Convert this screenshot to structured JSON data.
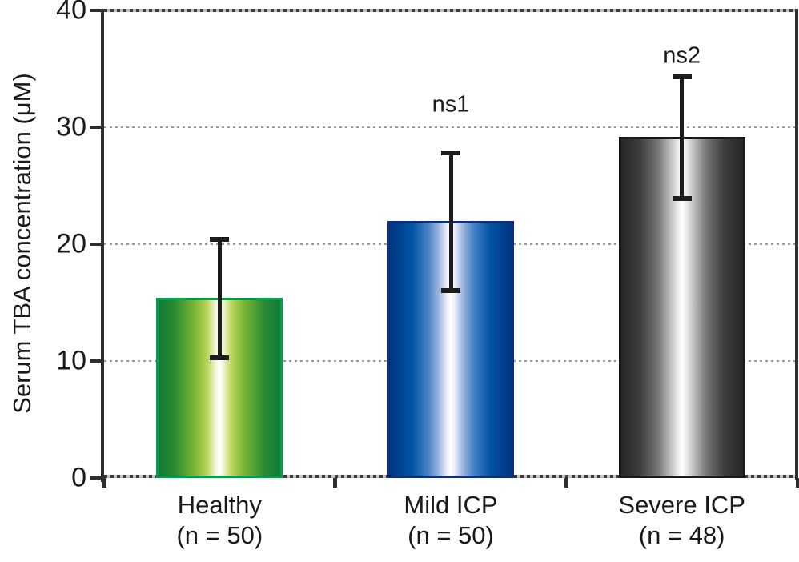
{
  "figure": {
    "background": "#ffffff",
    "text_color": "#1a1a1a",
    "axis_color": "#2e2e2e"
  },
  "chart_data": {
    "type": "bar",
    "title": "",
    "xlabel": "",
    "ylabel": "Serum TBA concentration (μM)",
    "ylim": [
      0,
      40
    ],
    "yticks": [
      "0",
      "10",
      "20",
      "30",
      "40"
    ],
    "ytick_values": [
      0,
      10,
      20,
      30,
      40
    ],
    "grid": {
      "values": [
        10,
        20,
        30
      ],
      "style": "dotted",
      "color": "#9a9a9a"
    },
    "frame": {
      "left": "solid",
      "right": "solid",
      "top": "dark-dotted",
      "bottom": "dark-dotted"
    },
    "categories": [
      {
        "label": "Healthy",
        "sublabel": "(n = 50)",
        "value": 15.4,
        "error_low": 10.3,
        "error_high": 20.4,
        "color_class": "bar-green",
        "fill_edge_color": "#0f7a38",
        "border_color": "#00A14B"
      },
      {
        "label": "Mild ICP",
        "sublabel": "(n = 50)",
        "value": 22.0,
        "error_low": 16.0,
        "error_high": 27.8,
        "color_class": "bar-blue",
        "fill_edge_color": "#00357f",
        "border_color": "#0d2f80"
      },
      {
        "label": "Severe ICP",
        "sublabel": "(n = 48)",
        "value": 29.2,
        "error_low": 23.9,
        "error_high": 34.3,
        "color_class": "bar-gray",
        "fill_edge_color": "#262626",
        "border_color": "#1a1a1a"
      }
    ],
    "annotations": [
      {
        "text": "ns1",
        "category_index": 1,
        "y_value": 31.9
      },
      {
        "text": "ns2",
        "category_index": 2,
        "y_value": 36.1
      }
    ],
    "legend": null
  }
}
